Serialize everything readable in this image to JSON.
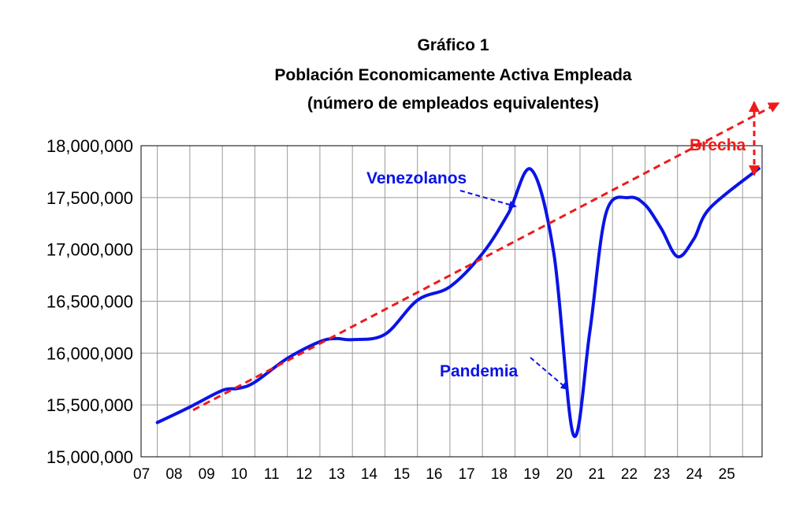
{
  "chart_data": {
    "type": "line",
    "title": "Gráfico 1",
    "subtitle": "Población Economicamente Activa Empleada",
    "subtitle2": "(número de empleados equivalentes)",
    "xlabel": "",
    "ylabel": "",
    "categories": [
      "07",
      "08",
      "09",
      "10",
      "11",
      "12",
      "13",
      "14",
      "15",
      "16",
      "17",
      "18",
      "19",
      "20",
      "21",
      "22",
      "23",
      "24",
      "25"
    ],
    "ylim": [
      15000000,
      18000000
    ],
    "yticks": [
      15000000,
      15500000,
      16000000,
      16500000,
      17000000,
      17500000,
      18000000
    ],
    "ytick_labels": [
      "15,000,000",
      "15,500,000",
      "16,000,000",
      "16,500,000",
      "17,000,000",
      "17,500,000",
      "18,000,000"
    ],
    "grid": true,
    "series": [
      {
        "name": "",
        "color": "#0a14e6",
        "x": [
          7,
          8,
          9,
          9.5,
          10,
          11,
          12,
          12.5,
          13,
          14,
          15,
          16,
          17,
          17.8,
          18.5,
          19.2,
          19.8,
          20.3,
          20.8,
          21.5,
          22,
          22.5,
          23,
          23.5,
          24,
          25.5
        ],
        "y": [
          15330000,
          15480000,
          15640000,
          15660000,
          15720000,
          15950000,
          16110000,
          16140000,
          16130000,
          16180000,
          16510000,
          16640000,
          16960000,
          17350000,
          17770000,
          16950000,
          15210000,
          16200000,
          17350000,
          17500000,
          17430000,
          17200000,
          16930000,
          17100000,
          17400000,
          17780000
        ]
      },
      {
        "name": "",
        "color": "#ee1b1b",
        "style": "dashed",
        "x": [
          8.1,
          26.1
        ],
        "y": [
          15450000,
          18410000
        ]
      }
    ],
    "annotations": [
      {
        "text": "Venezolanos",
        "color": "#0a14e6"
      },
      {
        "text": "Pandemia",
        "color": "#0a14e6"
      },
      {
        "text": "Brecha",
        "color": "#ee1b1b"
      }
    ]
  }
}
